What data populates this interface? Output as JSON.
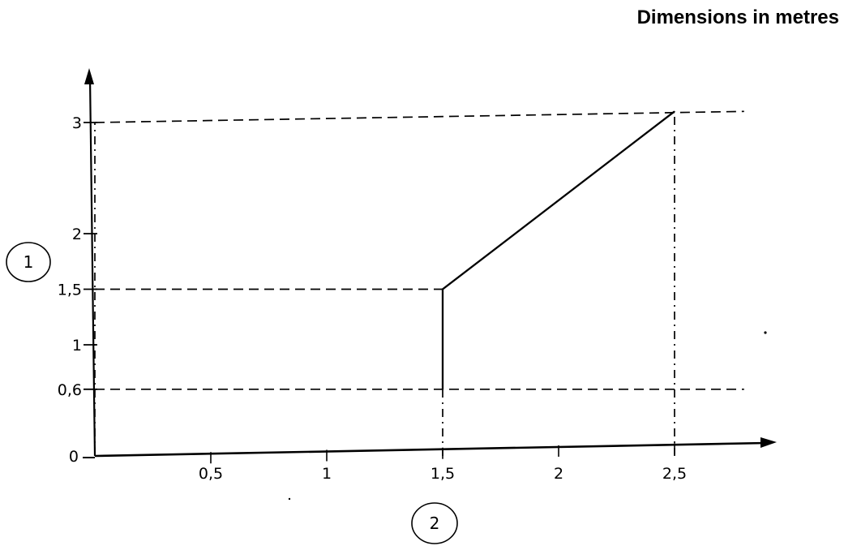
{
  "title": "Dimensions in metres",
  "chart_data": {
    "type": "line",
    "title": "Dimensions in metres",
    "xlabel": "",
    "ylabel": "",
    "xlim": [
      0,
      2.8
    ],
    "ylim": [
      0,
      3.1
    ],
    "grid": false,
    "x_ticks": [
      {
        "value": 0.5,
        "label": "0,5"
      },
      {
        "value": 1,
        "label": "1"
      },
      {
        "value": 1.5,
        "label": "1,5"
      },
      {
        "value": 2,
        "label": "2"
      },
      {
        "value": 2.5,
        "label": "2,5"
      }
    ],
    "y_ticks": [
      {
        "value": 0,
        "label": "0"
      },
      {
        "value": 0.6,
        "label": "0,6"
      },
      {
        "value": 1,
        "label": "1"
      },
      {
        "value": 1.5,
        "label": "1,5"
      },
      {
        "value": 2,
        "label": "2"
      },
      {
        "value": 3,
        "label": "3"
      }
    ],
    "series": [
      {
        "style": "solid",
        "x": [
          1.5,
          1.5,
          2.5
        ],
        "y": [
          0.6,
          1.5,
          3.1
        ]
      }
    ],
    "reference_lines": [
      {
        "style": "dashed",
        "x": [
          0,
          2.8
        ],
        "y": [
          3,
          3.1
        ]
      },
      {
        "style": "dashed",
        "x": [
          0,
          1.5
        ],
        "y": [
          1.5,
          1.5
        ]
      },
      {
        "style": "dashed",
        "x": [
          0,
          2.8
        ],
        "y": [
          0.6,
          0.6
        ]
      },
      {
        "style": "dash-dot",
        "x": [
          1.5,
          1.5
        ],
        "y": [
          0,
          0.6
        ]
      },
      {
        "style": "dash-dot",
        "x": [
          2.5,
          2.5
        ],
        "y": [
          0,
          3.1
        ]
      },
      {
        "style": "dash-dot",
        "x": [
          0,
          0
        ],
        "y": [
          0,
          3
        ]
      }
    ],
    "axis_markers": [
      {
        "label": "1",
        "axis": "y"
      },
      {
        "label": "2",
        "axis": "x"
      }
    ]
  }
}
